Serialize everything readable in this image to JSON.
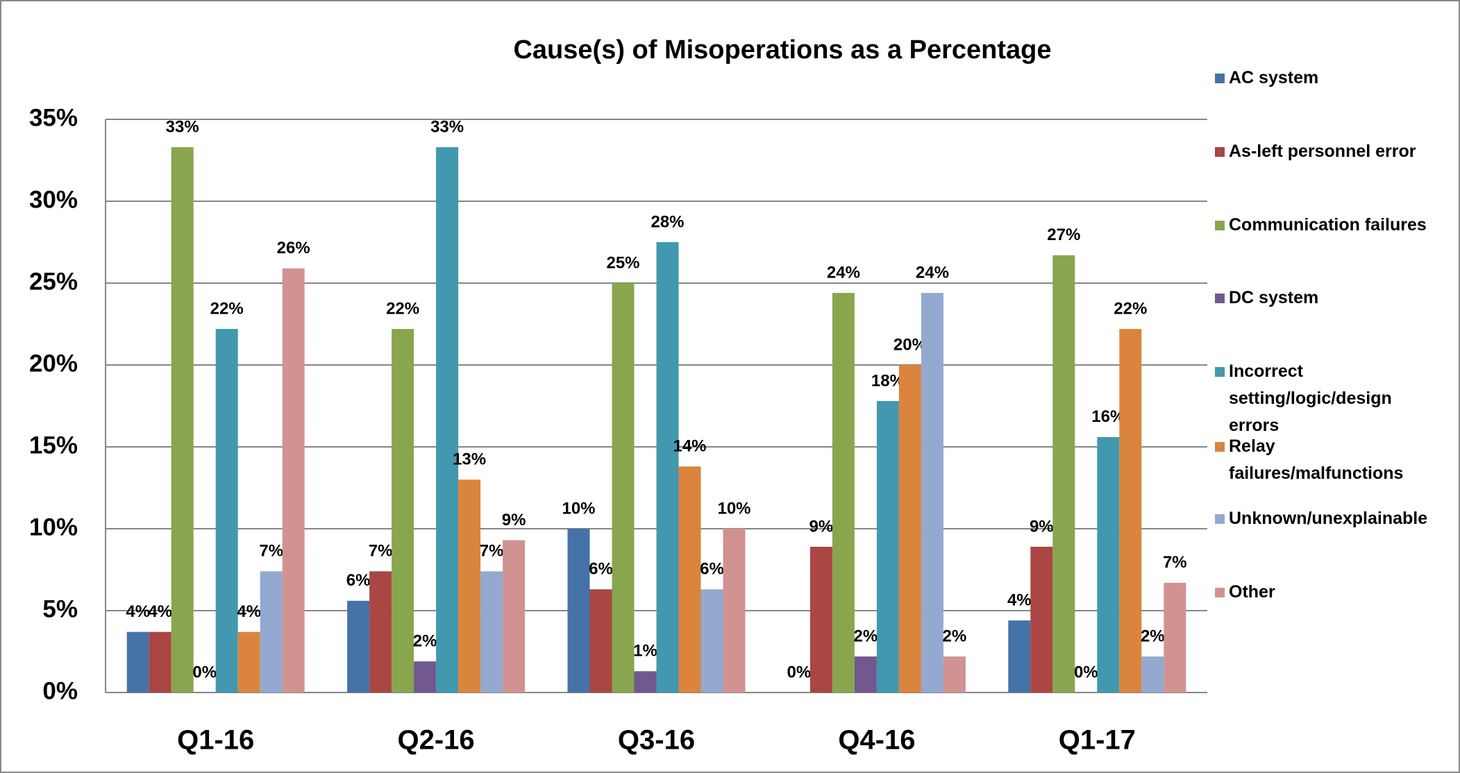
{
  "chart_data": {
    "type": "bar",
    "title": "Cause(s) of Misoperations as a Percentage",
    "categories": [
      "Q1-16",
      "Q2-16",
      "Q3-16",
      "Q4-16",
      "Q1-17"
    ],
    "series": [
      {
        "name": "AC system",
        "color": "#4572a7",
        "values": [
          3.7,
          5.6,
          10,
          0,
          4.4
        ],
        "value_labels": [
          "4%",
          "6%",
          "10%",
          "0%",
          "4%"
        ]
      },
      {
        "name": "As-left personnel error",
        "color": "#aa4643",
        "values": [
          3.7,
          7.4,
          6.3,
          8.9,
          8.9
        ],
        "value_labels": [
          "4%",
          "7%",
          "6%",
          "9%",
          "9%"
        ]
      },
      {
        "name": "Communication failures",
        "color": "#89a54e",
        "values": [
          33.3,
          22.2,
          25,
          24.4,
          26.7
        ],
        "value_labels": [
          "33%",
          "22%",
          "25%",
          "24%",
          "27%"
        ]
      },
      {
        "name": "DC system",
        "color": "#71588f",
        "values": [
          0,
          1.9,
          1.3,
          2.2,
          0
        ],
        "value_labels": [
          "0%",
          "2%",
          "1%",
          "2%",
          "0%"
        ]
      },
      {
        "name": "Incorrect setting/logic/design errors",
        "color": "#4198af",
        "values": [
          22.2,
          33.3,
          27.5,
          17.8,
          15.6
        ],
        "value_labels": [
          "22%",
          "33%",
          "28%",
          "18%",
          "16%"
        ]
      },
      {
        "name": "Relay failures/malfunctions",
        "color": "#db843d",
        "values": [
          3.7,
          13,
          13.8,
          20,
          22.2
        ],
        "value_labels": [
          "4%",
          "13%",
          "14%",
          "20%",
          "22%"
        ]
      },
      {
        "name": "Unknown/unexplainable",
        "color": "#93a9cf",
        "values": [
          7.4,
          7.4,
          6.3,
          24.4,
          2.2
        ],
        "value_labels": [
          "7%",
          "7%",
          "6%",
          "24%",
          "2%"
        ]
      },
      {
        "name": "Other",
        "color": "#d19392",
        "values": [
          25.9,
          9.3,
          10,
          2.2,
          6.7
        ],
        "value_labels": [
          "26%",
          "9%",
          "10%",
          "2%",
          "7%"
        ]
      }
    ],
    "ylim": [
      0,
      35
    ],
    "yticks": [
      {
        "value": 0,
        "label": "0%"
      },
      {
        "value": 5,
        "label": "5%"
      },
      {
        "value": 10,
        "label": "10%"
      },
      {
        "value": 15,
        "label": "15%"
      },
      {
        "value": 20,
        "label": "20%"
      },
      {
        "value": 25,
        "label": "25%"
      },
      {
        "value": 30,
        "label": "30%"
      },
      {
        "value": 35,
        "label": "35%"
      }
    ],
    "grid": true,
    "legend": "right"
  }
}
